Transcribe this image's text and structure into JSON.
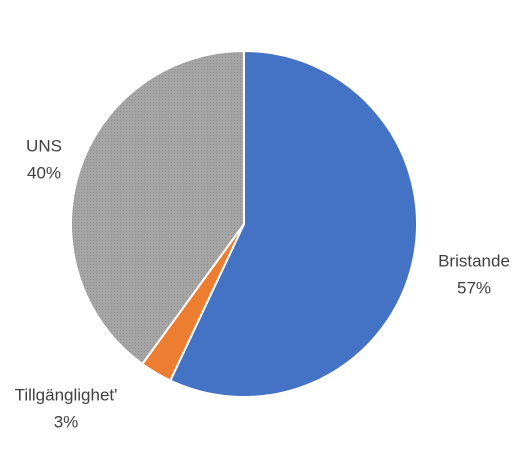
{
  "chart_data": {
    "type": "pie",
    "categories": [
      "Bristande",
      "Tillgänglighet'",
      "UNS"
    ],
    "values": [
      57,
      3,
      40
    ],
    "value_labels": [
      "57%",
      "3%",
      "40%"
    ],
    "colors": [
      "#4472c4",
      "#ed7d31",
      "#a5a5a5"
    ]
  }
}
